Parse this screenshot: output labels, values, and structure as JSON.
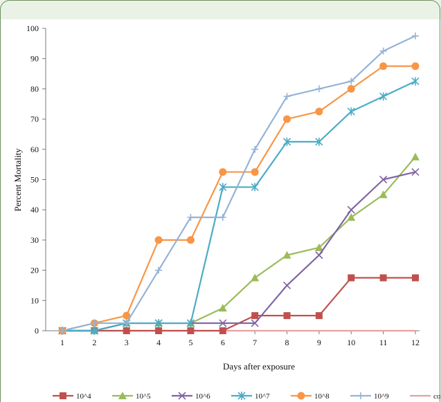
{
  "chart_data": {
    "type": "line",
    "title": "",
    "xlabel": "Days after exposure",
    "ylabel": "Percent Mortality",
    "x": [
      1,
      2,
      3,
      4,
      5,
      6,
      7,
      8,
      9,
      10,
      11,
      12
    ],
    "ylim": [
      0,
      100
    ],
    "yticks": [
      0,
      10,
      20,
      30,
      40,
      50,
      60,
      70,
      80,
      90,
      100
    ],
    "grid": false,
    "legend_position": "bottom",
    "series": [
      {
        "name": "10^4",
        "color": "#c0504d",
        "marker": "square",
        "values": [
          0,
          0,
          0,
          0,
          0,
          0,
          5,
          5,
          5,
          17.5,
          17.5,
          17.5
        ]
      },
      {
        "name": "10^5",
        "color": "#9bbb59",
        "marker": "triangle",
        "values": [
          0,
          0,
          2.5,
          2.5,
          2.5,
          7.5,
          17.5,
          25,
          27.5,
          37.5,
          45,
          57.5
        ]
      },
      {
        "name": "10^6",
        "color": "#8064a2",
        "marker": "x",
        "values": [
          0,
          0,
          2.5,
          2.5,
          2.5,
          2.5,
          2.5,
          15,
          25,
          40,
          50,
          52.5
        ]
      },
      {
        "name": "10^7",
        "color": "#4bacc6",
        "marker": "star",
        "values": [
          0,
          0,
          2.5,
          2.5,
          2.5,
          47.5,
          47.5,
          62.5,
          62.5,
          72.5,
          77.5,
          82.5
        ]
      },
      {
        "name": "10^8",
        "color": "#f79646",
        "marker": "circle",
        "values": [
          0,
          2.5,
          5,
          30,
          30,
          52.5,
          52.5,
          70,
          72.5,
          80,
          87.5,
          87.5
        ]
      },
      {
        "name": "10^9",
        "color": "#95b3d7",
        "marker": "plus",
        "values": [
          0,
          2.5,
          2.5,
          20,
          37.5,
          37.5,
          60,
          77.5,
          80,
          82.5,
          92.5,
          97.5
        ]
      },
      {
        "name": "control",
        "color": "#e6a0a0",
        "marker": "none",
        "values": [
          0,
          0,
          0,
          0,
          0,
          0,
          0,
          0,
          0,
          0,
          0,
          0
        ]
      }
    ]
  }
}
